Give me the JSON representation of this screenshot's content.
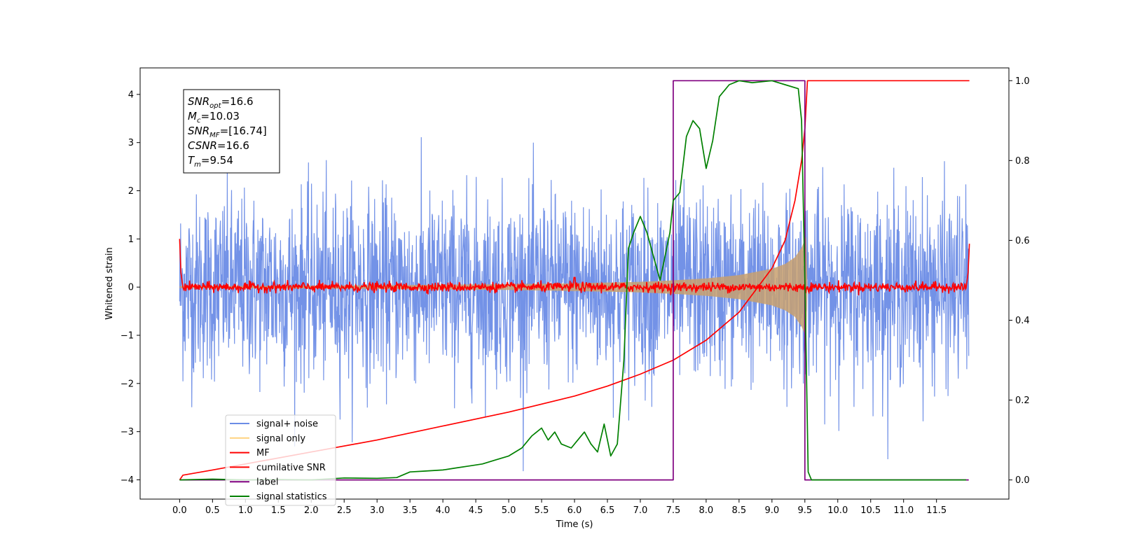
{
  "chart_data": {
    "type": "line",
    "xlabel": "Time (s)",
    "ylabel_left": "Whitened strain",
    "ylabel_right": "",
    "xlim": [
      -0.6,
      12.6
    ],
    "ylim_left": [
      -4.4,
      4.55
    ],
    "ylim_right": [
      -0.048,
      1.032
    ],
    "x_ticks": [
      0.0,
      0.5,
      1.0,
      1.5,
      2.0,
      2.5,
      3.0,
      3.5,
      4.0,
      4.5,
      5.0,
      5.5,
      6.0,
      6.5,
      7.0,
      7.5,
      8.0,
      8.5,
      9.0,
      9.5,
      10.0,
      10.5,
      11.0,
      11.5
    ],
    "x_tick_labels": [
      "0.0",
      "0.5",
      "1.0",
      "1.5",
      "2.0",
      "2.5",
      "3.0",
      "3.5",
      "4.0",
      "4.5",
      "5.0",
      "5.5",
      "6.0",
      "6.5",
      "7.0",
      "7.5",
      "8.0",
      "8.5",
      "9.0",
      "9.5",
      "10.0",
      "10.5",
      "11.0",
      "11.5"
    ],
    "y_ticks_left": [
      4,
      3,
      2,
      1,
      0,
      -1,
      -2,
      -3,
      -4
    ],
    "y_tick_labels_left": [
      "4",
      "3",
      "2",
      "1",
      "0",
      "−1",
      "−2",
      "−3",
      "−4"
    ],
    "y_ticks_right": [
      1.0,
      0.8,
      0.6,
      0.4,
      0.2,
      0.0
    ],
    "y_tick_labels_right": [
      "1.0",
      "0.8",
      "0.6",
      "0.4",
      "0.2",
      "0.0"
    ],
    "grid": false,
    "legend_placement": "lower-left",
    "legend": [
      {
        "name": "signal+ noise",
        "color": "#6b8ce6"
      },
      {
        "name": "signal only",
        "color": "#ffd27f"
      },
      {
        "name": "MF",
        "color": "#ff0000"
      },
      {
        "name": "cumilative SNR",
        "color": "#ff0000"
      },
      {
        "name": "label",
        "color": "#800080"
      },
      {
        "name": "signal statistics",
        "color": "#008000"
      }
    ],
    "annotation": {
      "lines": [
        {
          "base": "SNR",
          "sub": "opt",
          "value": "=16.6"
        },
        {
          "base": "M",
          "sub": "c",
          "value": "=10.03"
        },
        {
          "base": "SNR",
          "sub": "MF",
          "value": "=[16.74]"
        },
        {
          "base": "CSNR",
          "sub": "",
          "value": "=16.6"
        },
        {
          "base": "T",
          "sub": "m",
          "value": "=9.54"
        }
      ]
    },
    "series": [
      {
        "name": "signal+ noise",
        "axis": "left",
        "color": "#6b8ce6",
        "description_range": [
          0.0,
          11.99
        ],
        "noise_envelope": [
          -2.6,
          2.9
        ]
      },
      {
        "name": "signal only",
        "axis": "left",
        "color": "#c8a06e",
        "x": [
          0.0,
          2.0,
          4.0,
          5.0,
          6.0,
          7.0,
          7.5,
          8.0,
          8.5,
          9.0,
          9.2,
          9.35,
          9.45,
          9.52,
          9.54
        ],
        "envelope": [
          0.02,
          0.03,
          0.05,
          0.06,
          0.08,
          0.11,
          0.14,
          0.18,
          0.25,
          0.38,
          0.48,
          0.62,
          0.82,
          1.05,
          0.0
        ]
      },
      {
        "name": "MF",
        "axis": "left",
        "color": "#ff0000",
        "x": [
          0.0,
          0.02,
          0.05,
          11.95,
          11.98,
          12.0
        ],
        "y": [
          1.0,
          0.3,
          0.0,
          0.0,
          0.3,
          0.9
        ]
      },
      {
        "name": "cumilative SNR",
        "axis": "right",
        "color": "#ff0000",
        "x": [
          0.0,
          0.05,
          0.5,
          1.0,
          2.0,
          3.0,
          4.0,
          5.0,
          6.0,
          6.5,
          7.0,
          7.5,
          8.0,
          8.5,
          9.0,
          9.2,
          9.35,
          9.45,
          9.5,
          9.54,
          9.6,
          12.0
        ],
        "y": [
          0.0,
          0.012,
          0.025,
          0.04,
          0.07,
          0.1,
          0.135,
          0.17,
          0.21,
          0.235,
          0.265,
          0.3,
          0.35,
          0.42,
          0.53,
          0.6,
          0.7,
          0.8,
          0.88,
          1.0,
          1.0,
          1.0
        ]
      },
      {
        "name": "label",
        "axis": "right",
        "color": "#800080",
        "x": [
          0.0,
          7.5,
          7.5,
          9.5,
          9.5,
          11.99
        ],
        "y": [
          0.0,
          0.0,
          1.0,
          1.0,
          0.0,
          0.0
        ]
      },
      {
        "name": "signal statistics",
        "axis": "right",
        "color": "#008000",
        "x": [
          0.0,
          0.5,
          1.0,
          1.5,
          2.0,
          2.5,
          3.0,
          3.3,
          3.5,
          3.7,
          4.0,
          4.2,
          4.4,
          4.6,
          4.8,
          5.0,
          5.2,
          5.35,
          5.5,
          5.6,
          5.7,
          5.8,
          5.95,
          6.05,
          6.15,
          6.25,
          6.35,
          6.45,
          6.55,
          6.65,
          6.75,
          6.82,
          6.9,
          7.0,
          7.1,
          7.3,
          7.45,
          7.5,
          7.6,
          7.7,
          7.8,
          7.9,
          8.0,
          8.1,
          8.2,
          8.35,
          8.5,
          8.7,
          9.0,
          9.2,
          9.4,
          9.45,
          9.5,
          9.55,
          9.6,
          11.0,
          11.95
        ],
        "y": [
          0.0,
          0.002,
          0.0,
          0.001,
          0.0,
          0.005,
          0.004,
          0.006,
          0.02,
          0.022,
          0.025,
          0.03,
          0.035,
          0.04,
          0.05,
          0.06,
          0.08,
          0.11,
          0.13,
          0.1,
          0.12,
          0.09,
          0.08,
          0.1,
          0.12,
          0.09,
          0.07,
          0.14,
          0.06,
          0.09,
          0.3,
          0.58,
          0.62,
          0.66,
          0.62,
          0.5,
          0.62,
          0.7,
          0.72,
          0.86,
          0.9,
          0.88,
          0.78,
          0.85,
          0.96,
          0.99,
          1.0,
          0.995,
          1.0,
          0.99,
          0.98,
          0.9,
          0.5,
          0.02,
          0.0,
          0.0,
          0.0
        ]
      }
    ]
  }
}
